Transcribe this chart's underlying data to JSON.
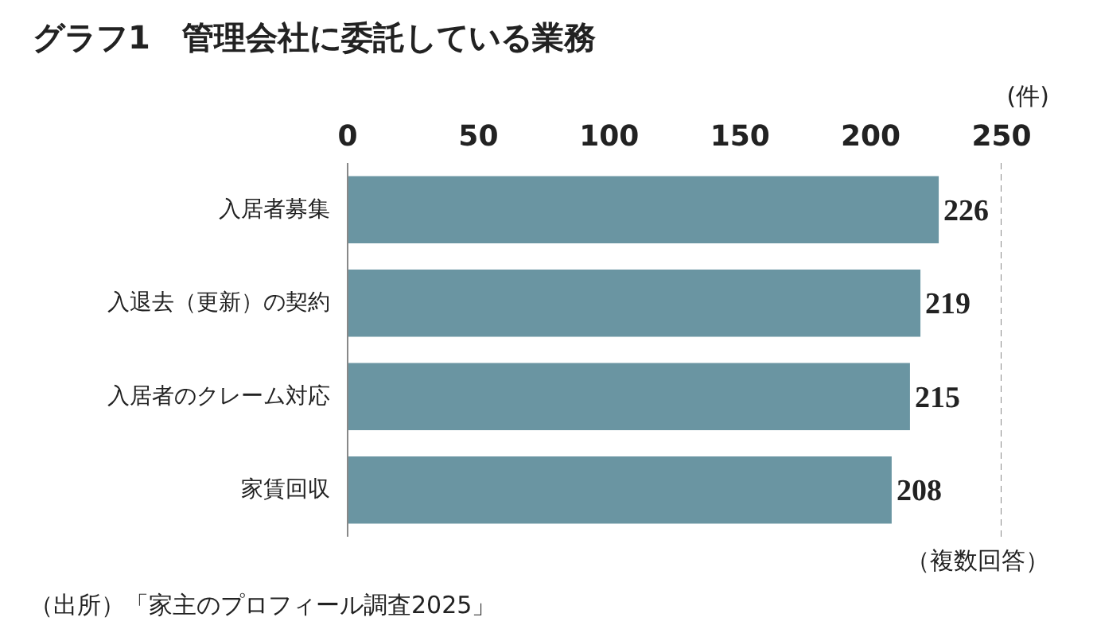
{
  "chart_data": {
    "type": "bar",
    "orientation": "horizontal",
    "title": "グラフ1　管理会社に委託している業務",
    "xlabel": "(件)",
    "categories": [
      "入居者募集",
      "入退去（更新）の契約",
      "入居者のクレーム対応",
      "家賃回収"
    ],
    "values": [
      226,
      219,
      215,
      208
    ],
    "color": "#6a95a2",
    "data_labels": true,
    "xlim": [
      0,
      250
    ],
    "xticks": [
      0,
      50,
      100,
      150,
      200,
      250
    ],
    "grid": false,
    "ref_lines": [
      {
        "axis": "x",
        "value": 250,
        "line_style": "dashed",
        "color": "#888888"
      }
    ],
    "annotations": [
      "（複数回答）",
      "（出所）「家主のプロフィール調査2025」"
    ]
  }
}
